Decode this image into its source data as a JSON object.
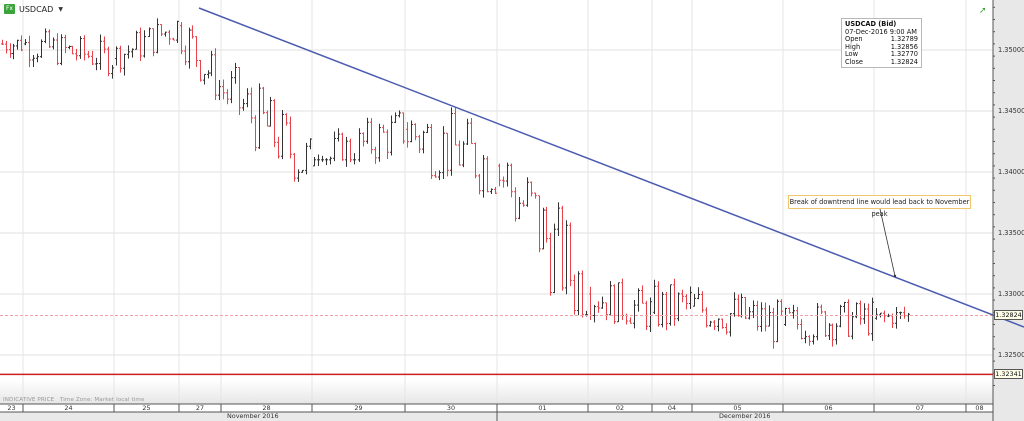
{
  "header": {
    "badge": "Fx",
    "symbol": "USDCAD",
    "dropdown_icon": "caret-down-icon"
  },
  "toolbar": {
    "trend_icon": "trend-up-arrow-icon"
  },
  "infobox": {
    "title": "USDCAD (Bid)",
    "datetime": "07-Dec-2016 9:00 AM",
    "rows": [
      {
        "label": "Open",
        "value": "1.32789"
      },
      {
        "label": "High",
        "value": "1.32856"
      },
      {
        "label": "Low",
        "value": "1.32770"
      },
      {
        "label": "Close",
        "value": "1.32824"
      }
    ]
  },
  "annotation": {
    "text": "Break of downtrend line would lead back to November peak"
  },
  "price_axis": {
    "labels": [
      "1.35000",
      "1.34500",
      "1.34000",
      "1.33500",
      "1.33000",
      "1.32500"
    ],
    "current_price": "1.32824",
    "support_level": "1.32341"
  },
  "footer": {
    "indicative": "INDICATIVE PRICE",
    "timezone": "Time Zone: Market local time"
  },
  "date_axis": {
    "days": [
      "23",
      "24",
      "25",
      "27",
      "28",
      "29",
      "30",
      "01",
      "02",
      "04",
      "05",
      "06",
      "07",
      "08"
    ],
    "months": [
      "November 2016",
      "December 2016"
    ]
  },
  "colors": {
    "up_bar": "#333333",
    "down_bar": "#e8424a",
    "trendline": "#4a5bb0",
    "support_line": "#cc1f1f",
    "current_price_line": "#f4a0a0",
    "accent_green": "#3aa43a"
  },
  "chart_data": {
    "type": "ohlc",
    "title": "USDCAD",
    "instrument": "USDCAD (Bid)",
    "xlabel": "",
    "ylabel": "",
    "x_ticks": [
      "23",
      "24",
      "25",
      "27",
      "28",
      "29",
      "30",
      "01",
      "02",
      "04",
      "05",
      "06",
      "07",
      "08"
    ],
    "x_month_labels": [
      "November 2016",
      "December 2016"
    ],
    "y_ticks": [
      1.35,
      1.345,
      1.34,
      1.335,
      1.33,
      1.325
    ],
    "ylim": [
      1.3222,
      1.3541
    ],
    "grid": true,
    "approx_daily_path": [
      {
        "date": "23 Nov",
        "high": 1.3531,
        "low": 1.3497,
        "close": 1.3505
      },
      {
        "date": "24 Nov",
        "high": 1.3517,
        "low": 1.3468,
        "close": 1.3493
      },
      {
        "date": "25 Nov",
        "high": 1.3536,
        "low": 1.3485,
        "close": 1.352
      },
      {
        "date": "27 Nov",
        "high": 1.3539,
        "low": 1.3463,
        "close": 1.347
      },
      {
        "date": "28 Nov",
        "high": 1.3495,
        "low": 1.3395,
        "close": 1.3405
      },
      {
        "date": "29 Nov",
        "high": 1.3479,
        "low": 1.341,
        "close": 1.3435
      },
      {
        "date": "30 Nov",
        "high": 1.346,
        "low": 1.3355,
        "close": 1.3405
      },
      {
        "date": "01 Dec",
        "high": 1.3433,
        "low": 1.3283,
        "close": 1.33
      },
      {
        "date": "02 Dec",
        "high": 1.3315,
        "low": 1.3254,
        "close": 1.3285
      },
      {
        "date": "04 Dec",
        "high": 1.3356,
        "low": 1.3275,
        "close": 1.329
      },
      {
        "date": "05 Dec",
        "high": 1.3303,
        "low": 1.3234,
        "close": 1.3275
      },
      {
        "date": "06 Dec",
        "high": 1.3308,
        "low": 1.3252,
        "close": 1.328
      },
      {
        "date": "07 Dec",
        "high": 1.3291,
        "low": 1.3264,
        "close": 1.32824
      }
    ],
    "overlays": [
      {
        "type": "trendline",
        "label": "Downtrend line",
        "from": {
          "date": "27 Nov",
          "price": 1.3537
        },
        "to": {
          "date": "08 Dec",
          "price": 1.3276
        }
      },
      {
        "type": "hline",
        "label": "Support",
        "price": 1.32341
      },
      {
        "type": "hline",
        "label": "Current price",
        "price": 1.32824,
        "style": "dashed"
      }
    ],
    "annotations": [
      "Break of downtrend line would lead back to November peak"
    ],
    "tooltip": {
      "datetime": "07-Dec-2016 9:00 AM",
      "open": 1.32789,
      "high": 1.32856,
      "low": 1.3277,
      "close": 1.32824
    }
  }
}
